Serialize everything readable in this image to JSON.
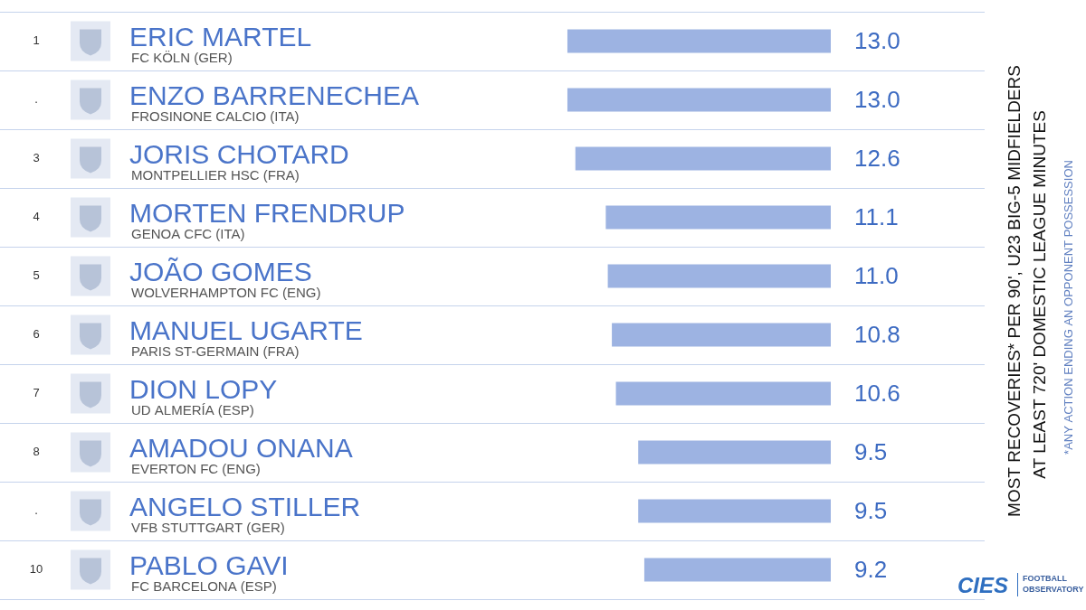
{
  "chart_data": {
    "type": "bar",
    "orientation": "horizontal",
    "title": "MOST RECOVERIES* PER 90', U23 BIG-5 MIDFIELDERS",
    "subtitle": "AT LEAST 720' DOMESTIC LEAGUE MINUTES",
    "footnote": "*ANY ACTION ENDING AN OPPONENT POSSESSION",
    "logo": [
      "CIES",
      "FOOTBALL",
      "OBSERVATORY"
    ],
    "ranks": [
      "1",
      ".",
      "3",
      "4",
      "5",
      "6",
      "7",
      "8",
      ".",
      "10"
    ],
    "categories": [
      "ERIC MARTEL",
      "ENZO BARRENECHEA",
      "JORIS CHOTARD",
      "MORTEN FRENDRUP",
      "JOÃO GOMES",
      "MANUEL UGARTE",
      "DION LOPY",
      "AMADOU ONANA",
      "ANGELO STILLER",
      "PABLO GAVI"
    ],
    "clubs": [
      "FC KÖLN (GER)",
      "FROSINONE CALCIO (ITA)",
      "MONTPELLIER HSC (FRA)",
      "GENOA CFC (ITA)",
      "WOLVERHAMPTON FC (ENG)",
      "PARIS ST-GERMAIN (FRA)",
      "UD ALMERÍA (ESP)",
      "EVERTON FC (ENG)",
      "VFB STUTTGART (GER)",
      "FC BARCELONA (ESP)"
    ],
    "values": [
      13.0,
      13.0,
      12.6,
      11.1,
      11.0,
      10.8,
      10.6,
      9.5,
      9.5,
      9.2
    ],
    "value_labels": [
      "13.0",
      "13.0",
      "12.6",
      "11.1",
      "11.0",
      "10.8",
      "10.6",
      "9.5",
      "9.5",
      "9.2"
    ],
    "data_labels": true,
    "color": "#9db3e2",
    "xlim": [
      0,
      13
    ],
    "xticks": [],
    "tick_labels": false,
    "grid": true
  }
}
